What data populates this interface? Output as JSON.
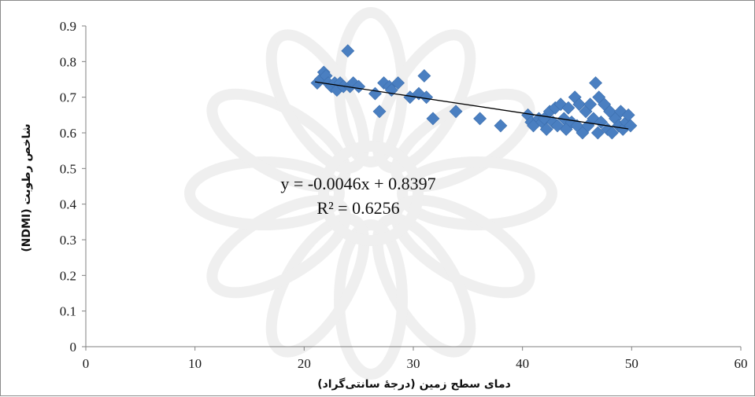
{
  "chart_data": {
    "type": "scatter",
    "xlabel": "دمای سطح زمین (درجهٔ سانتی‌گراد)",
    "ylabel": "شاخص رطوبت (NDMI)",
    "xlim": [
      0,
      60
    ],
    "ylim": [
      0,
      0.9
    ],
    "xticks": [
      "0",
      "10",
      "20",
      "30",
      "40",
      "50",
      "60"
    ],
    "yticks": [
      "0",
      "0.1",
      "0.2",
      "0.3",
      "0.4",
      "0.5",
      "0.6",
      "0.7",
      "0.8",
      "0.9"
    ],
    "grid": false,
    "marker": "diamond",
    "colors": {
      "points": "#4a7fc1",
      "trendline": "#000000"
    },
    "trendline": {
      "type": "linear",
      "slope": -0.0046,
      "intercept": 0.8397,
      "x_range": [
        21,
        49.7
      ]
    },
    "equation": "y = -0.0046x + 0.8397",
    "r_squared": "R² = 0.6256",
    "points": [
      [
        21.2,
        0.74
      ],
      [
        21.5,
        0.75
      ],
      [
        21.8,
        0.77
      ],
      [
        22.0,
        0.76
      ],
      [
        22.2,
        0.74
      ],
      [
        22.5,
        0.73
      ],
      [
        22.8,
        0.74
      ],
      [
        23.0,
        0.72
      ],
      [
        23.3,
        0.74
      ],
      [
        23.6,
        0.73
      ],
      [
        24.0,
        0.83
      ],
      [
        24.2,
        0.73
      ],
      [
        24.5,
        0.74
      ],
      [
        25.0,
        0.73
      ],
      [
        26.5,
        0.71
      ],
      [
        26.9,
        0.66
      ],
      [
        27.3,
        0.74
      ],
      [
        27.8,
        0.73
      ],
      [
        28.0,
        0.72
      ],
      [
        28.6,
        0.74
      ],
      [
        29.7,
        0.7
      ],
      [
        30.5,
        0.71
      ],
      [
        31.0,
        0.76
      ],
      [
        31.2,
        0.7
      ],
      [
        31.8,
        0.64
      ],
      [
        33.9,
        0.66
      ],
      [
        36.1,
        0.64
      ],
      [
        38.0,
        0.62
      ],
      [
        40.5,
        0.65
      ],
      [
        40.8,
        0.63
      ],
      [
        41.0,
        0.62
      ],
      [
        41.5,
        0.64
      ],
      [
        41.8,
        0.63
      ],
      [
        42.0,
        0.64
      ],
      [
        42.2,
        0.61
      ],
      [
        42.5,
        0.66
      ],
      [
        42.8,
        0.63
      ],
      [
        43.0,
        0.67
      ],
      [
        43.2,
        0.62
      ],
      [
        43.5,
        0.68
      ],
      [
        43.8,
        0.64
      ],
      [
        44.0,
        0.61
      ],
      [
        44.2,
        0.67
      ],
      [
        44.5,
        0.63
      ],
      [
        44.8,
        0.7
      ],
      [
        45.0,
        0.62
      ],
      [
        45.2,
        0.68
      ],
      [
        45.5,
        0.6
      ],
      [
        45.8,
        0.66
      ],
      [
        46.0,
        0.62
      ],
      [
        46.2,
        0.68
      ],
      [
        46.5,
        0.64
      ],
      [
        46.7,
        0.74
      ],
      [
        46.9,
        0.6
      ],
      [
        47.0,
        0.7
      ],
      [
        47.2,
        0.63
      ],
      [
        47.5,
        0.68
      ],
      [
        47.8,
        0.61
      ],
      [
        48.0,
        0.66
      ],
      [
        48.2,
        0.6
      ],
      [
        48.5,
        0.64
      ],
      [
        48.8,
        0.62
      ],
      [
        49.0,
        0.66
      ],
      [
        49.2,
        0.61
      ],
      [
        49.5,
        0.63
      ],
      [
        49.7,
        0.65
      ],
      [
        49.9,
        0.62
      ]
    ]
  }
}
